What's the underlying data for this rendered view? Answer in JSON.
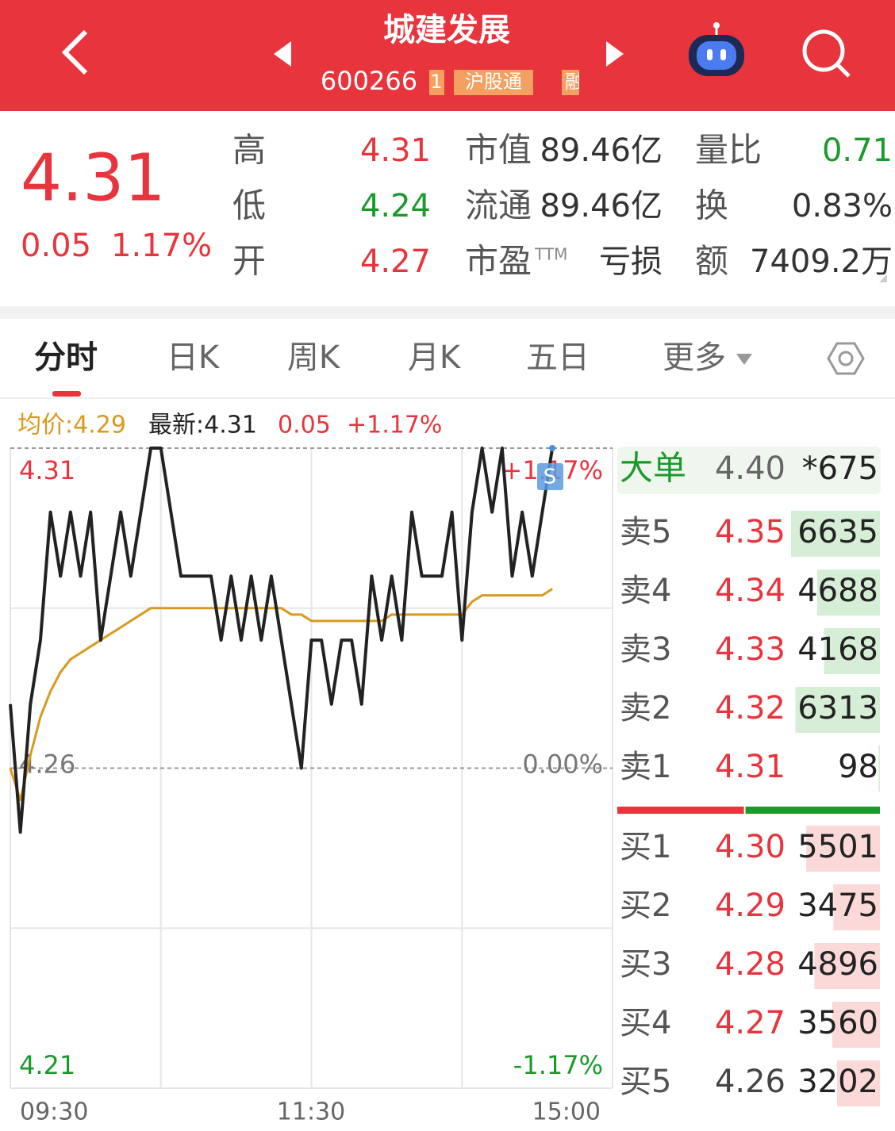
{
  "header": {
    "title": "城建发展",
    "code": "600266",
    "badge_number": "1",
    "badge": "沪股通",
    "badge_cut": "融"
  },
  "quote": {
    "price": "4.31",
    "change": "0.05",
    "change_pct": "1.17%",
    "stats": [
      [
        {
          "label": "高",
          "value": "4.31",
          "color": "#e8343c"
        },
        {
          "label": "市值",
          "value": "89.46亿"
        },
        {
          "label": "量比",
          "value": "0.71",
          "color": "#1a9a2a"
        }
      ],
      [
        {
          "label": "低",
          "value": "4.24",
          "color": "#1a9a2a"
        },
        {
          "label": "流通",
          "value": "89.46亿"
        },
        {
          "label": "换",
          "value": "0.83%"
        }
      ],
      [
        {
          "label": "开",
          "value": "4.27",
          "color": "#e8343c"
        },
        {
          "label": "市盈",
          "sup": "TTM",
          "value": "亏损"
        },
        {
          "label": "额",
          "value": "7409.2万"
        }
      ]
    ]
  },
  "tabs": {
    "items": [
      "分时",
      "日K",
      "周K",
      "月K",
      "五日",
      "更多"
    ],
    "active": 0
  },
  "legend": [
    {
      "text": "均价:4.29",
      "color": "#d89a1c"
    },
    {
      "text": "最新:4.31",
      "color": "#222"
    },
    {
      "text": "0.05",
      "color": "#e8343c"
    },
    {
      "text": "+1.17%",
      "color": "#e8343c"
    }
  ],
  "chart": {
    "type": "line",
    "ylim": [
      4.21,
      4.31
    ],
    "yticks": [
      4.21,
      4.26,
      4.31
    ],
    "pct_ticks": [
      {
        "value": 4.21,
        "label": "-1.17%"
      },
      {
        "value": 4.26,
        "label": "0.00%"
      },
      {
        "value": 4.31,
        "label": "+1.17%"
      }
    ],
    "xlim": [
      0,
      240
    ],
    "xticks": [
      "09:30",
      "11:30",
      "15:00"
    ],
    "marker": "S",
    "x": [
      0,
      4,
      8,
      12,
      16,
      20,
      24,
      28,
      32,
      36,
      40,
      44,
      48,
      52,
      56,
      60,
      64,
      68,
      72,
      76,
      80,
      84,
      88,
      92,
      96,
      100,
      104,
      108,
      112,
      116,
      120,
      124,
      128,
      132,
      136,
      140,
      144,
      148,
      152,
      156,
      160,
      164,
      168,
      172,
      176,
      180,
      184,
      188,
      192,
      196,
      200,
      204,
      208,
      212,
      216
    ],
    "series": [
      {
        "color": "#222222",
        "values": [
          4.27,
          4.25,
          4.27,
          4.28,
          4.3,
          4.29,
          4.3,
          4.29,
          4.3,
          4.28,
          4.29,
          4.3,
          4.29,
          4.3,
          4.31,
          4.31,
          4.3,
          4.29,
          4.29,
          4.29,
          4.29,
          4.28,
          4.29,
          4.28,
          4.29,
          4.28,
          4.29,
          4.28,
          4.27,
          4.26,
          4.28,
          4.28,
          4.27,
          4.28,
          4.28,
          4.27,
          4.29,
          4.28,
          4.29,
          4.28,
          4.3,
          4.29,
          4.29,
          4.29,
          4.3,
          4.28,
          4.3,
          4.31,
          4.3,
          4.31,
          4.29,
          4.3,
          4.29,
          4.3,
          4.31
        ]
      },
      {
        "color": "#d89a1c",
        "values": [
          4.26,
          4.255,
          4.262,
          4.268,
          4.272,
          4.275,
          4.277,
          4.278,
          4.279,
          4.28,
          4.281,
          4.282,
          4.283,
          4.284,
          4.285,
          4.285,
          4.285,
          4.285,
          4.285,
          4.285,
          4.285,
          4.285,
          4.285,
          4.285,
          4.285,
          4.285,
          4.285,
          4.285,
          4.284,
          4.284,
          4.283,
          4.283,
          4.283,
          4.283,
          4.283,
          4.283,
          4.283,
          4.283,
          4.284,
          4.284,
          4.284,
          4.284,
          4.284,
          4.284,
          4.284,
          4.284,
          4.286,
          4.287,
          4.287,
          4.287,
          4.287,
          4.287,
          4.287,
          4.287,
          4.288
        ]
      }
    ]
  },
  "order_book": {
    "big_order": {
      "label": "大单",
      "price": "4.40",
      "volume": "*675"
    },
    "sells": [
      {
        "label": "卖5",
        "price": "4.35",
        "volume": 6635,
        "color": "#e8343c"
      },
      {
        "label": "卖4",
        "price": "4.34",
        "volume": 4688,
        "color": "#e8343c"
      },
      {
        "label": "卖3",
        "price": "4.33",
        "volume": 4168,
        "color": "#e8343c"
      },
      {
        "label": "卖2",
        "price": "4.32",
        "volume": 6313,
        "color": "#e8343c"
      },
      {
        "label": "卖1",
        "price": "4.31",
        "volume": 98,
        "color": "#e8343c"
      }
    ],
    "buys": [
      {
        "label": "买1",
        "price": "4.30",
        "volume": 5501,
        "color": "#e8343c"
      },
      {
        "label": "买2",
        "price": "4.29",
        "volume": 3475,
        "color": "#e8343c"
      },
      {
        "label": "买3",
        "price": "4.28",
        "volume": 4896,
        "color": "#e8343c"
      },
      {
        "label": "买4",
        "price": "4.27",
        "volume": 3560,
        "color": "#e8343c"
      },
      {
        "label": "买5",
        "price": "4.26",
        "volume": 3202,
        "color": "#444444"
      }
    ]
  }
}
